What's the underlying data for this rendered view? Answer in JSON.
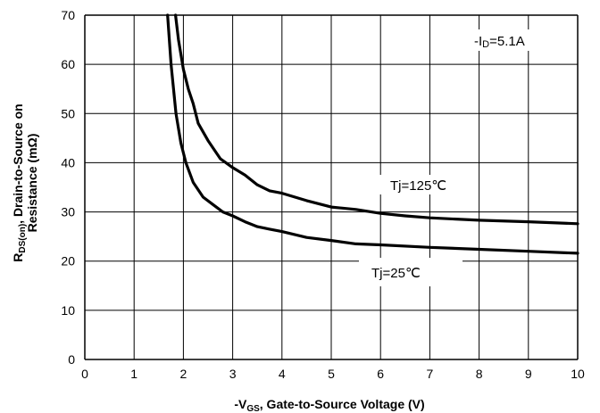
{
  "chart_data": {
    "type": "line",
    "xlim": [
      0,
      10
    ],
    "ylim": [
      0,
      70
    ],
    "x_ticks": [
      "0",
      "1",
      "2",
      "3",
      "4",
      "5",
      "6",
      "7",
      "8",
      "9",
      "10"
    ],
    "y_ticks": [
      "0",
      "10",
      "20",
      "30",
      "40",
      "50",
      "60",
      "70"
    ],
    "xlabel": {
      "prefix": "-V",
      "sub": "GS",
      "suffix": ", Gate-to-Source Voltage (V)"
    },
    "ylabel": {
      "line1_prefix": "R",
      "line1_sub": "DS(on)",
      "line1_suffix": ", Drain-to-Source on",
      "line2": "Resistance (mΩ)"
    },
    "grid": true,
    "annotation": {
      "prefix": "-I",
      "sub": "D",
      "suffix": "=5.1A"
    },
    "series": [
      {
        "name": "Tj=125℃",
        "color": "#000000",
        "x": [
          1.84,
          1.9,
          2.0,
          2.1,
          2.2,
          2.3,
          2.5,
          2.75,
          3.0,
          3.25,
          3.5,
          3.75,
          4.0,
          4.5,
          5.0,
          5.5,
          6.0,
          6.5,
          7.0,
          8.0,
          9.0,
          10.0
        ],
        "y": [
          70,
          65,
          59,
          55,
          52,
          48,
          44.5,
          40.8,
          39.0,
          37.5,
          35.5,
          34.3,
          33.8,
          32.3,
          31.0,
          30.5,
          29.7,
          29.2,
          28.8,
          28.3,
          28.0,
          27.6
        ]
      },
      {
        "name": "Tj=25℃",
        "color": "#000000",
        "x": [
          1.68,
          1.75,
          1.85,
          1.95,
          2.05,
          2.2,
          2.4,
          2.6,
          2.8,
          3.0,
          3.25,
          3.5,
          3.75,
          4.0,
          4.5,
          5.0,
          5.5,
          6.0,
          7.0,
          8.0,
          9.0,
          10.0
        ],
        "y": [
          70,
          60,
          50,
          44,
          40,
          36,
          33,
          31.5,
          30,
          29.2,
          28.0,
          27.0,
          26.5,
          26.0,
          24.8,
          24.2,
          23.5,
          23.3,
          22.8,
          22.4,
          22.0,
          21.6
        ]
      }
    ]
  }
}
